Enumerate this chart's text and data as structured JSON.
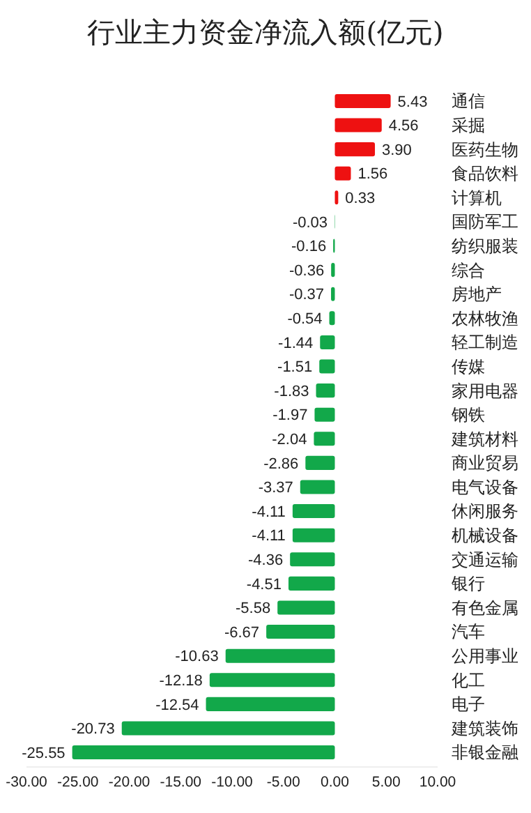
{
  "chart_data": {
    "type": "bar",
    "orientation": "horizontal",
    "title": "行业主力资金净流入额(亿元)",
    "categories": [
      "通信",
      "采掘",
      "医药生物",
      "食品饮料",
      "计算机",
      "国防军工",
      "纺织服装",
      "综合",
      "房地产",
      "农林牧渔",
      "轻工制造",
      "传媒",
      "家用电器",
      "钢铁",
      "建筑材料",
      "商业贸易",
      "电气设备",
      "休闲服务",
      "机械设备",
      "交通运输",
      "银行",
      "有色金属",
      "汽车",
      "公用事业",
      "化工",
      "电子",
      "建筑装饰",
      "非银金融"
    ],
    "values": [
      5.43,
      4.56,
      3.9,
      1.56,
      0.33,
      -0.03,
      -0.16,
      -0.36,
      -0.37,
      -0.54,
      -1.44,
      -1.51,
      -1.83,
      -1.97,
      -2.04,
      -2.86,
      -3.37,
      -4.11,
      -4.11,
      -4.36,
      -4.51,
      -5.58,
      -6.67,
      -10.63,
      -12.18,
      -12.54,
      -20.73,
      -25.55
    ],
    "value_labels": [
      "5.43",
      "4.56",
      "3.90",
      "1.56",
      "0.33",
      "-0.03",
      "-0.16",
      "-0.36",
      "-0.37",
      "-0.54",
      "-1.44",
      "-1.51",
      "-1.83",
      "-1.97",
      "-2.04",
      "-2.86",
      "-3.37",
      "-4.11",
      "-4.11",
      "-4.36",
      "-4.51",
      "-5.58",
      "-6.67",
      "-10.63",
      "-12.18",
      "-12.54",
      "-20.73",
      "-25.55"
    ],
    "colors": [
      "#ee1111",
      "#ee1111",
      "#ee1111",
      "#ee1111",
      "#ee1111",
      "#12a84a",
      "#12a84a",
      "#12a84a",
      "#12a84a",
      "#12a84a",
      "#12a84a",
      "#12a84a",
      "#12a84a",
      "#12a84a",
      "#12a84a",
      "#12a84a",
      "#12a84a",
      "#12a84a",
      "#12a84a",
      "#12a84a",
      "#12a84a",
      "#12a84a",
      "#12a84a",
      "#12a84a",
      "#12a84a",
      "#12a84a",
      "#12a84a",
      "#12a84a"
    ],
    "xlim": [
      -30,
      10
    ],
    "xticks": [
      {
        "value": -30,
        "label": "-30.00"
      },
      {
        "value": -25,
        "label": "-25.00"
      },
      {
        "value": -20,
        "label": "-20.00"
      },
      {
        "value": -15,
        "label": "-15.00"
      },
      {
        "value": -10,
        "label": "-10.00"
      },
      {
        "value": -5,
        "label": "-5.00"
      },
      {
        "value": 0,
        "label": "0.00"
      },
      {
        "value": 5,
        "label": "5.00"
      },
      {
        "value": 10,
        "label": "10.00"
      }
    ],
    "grid": false
  }
}
